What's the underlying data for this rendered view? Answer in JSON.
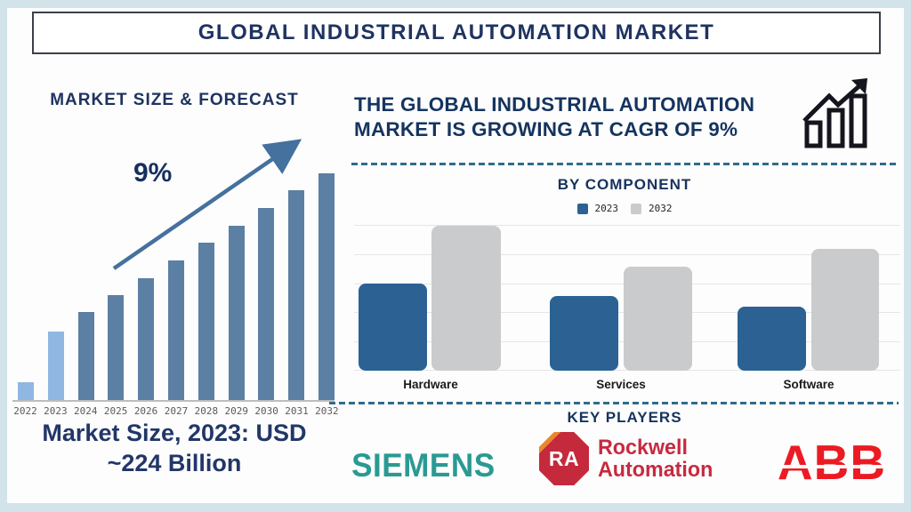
{
  "title": "GLOBAL INDUSTRIAL AUTOMATION MARKET",
  "left": {
    "heading": "MARKET SIZE & FORECAST",
    "growth_label": "9%",
    "caption_line1": "Market Size, 2023: USD",
    "caption_line2": "~224 Billion"
  },
  "right": {
    "headline_line1": "THE GLOBAL INDUSTRIAL AUTOMATION",
    "headline_line2": "MARKET IS GROWING AT CAGR OF 9%",
    "key_players_heading": "KEY PLAYERS"
  },
  "logos": {
    "siemens": "SIEMENS",
    "rockwell_badge": "RA",
    "rockwell_line1": "Rockwell",
    "rockwell_line2": "Automation",
    "abb": "ABB"
  },
  "chart_data": [
    {
      "id": "market-size-forecast",
      "type": "bar",
      "title": "MARKET SIZE & FORECAST",
      "categories": [
        "2022",
        "2023",
        "2024",
        "2025",
        "2026",
        "2027",
        "2028",
        "2029",
        "2030",
        "2031",
        "2032"
      ],
      "values": [
        20,
        77,
        99,
        118,
        137,
        157,
        177,
        196,
        216,
        236,
        255
      ],
      "value_scale": "relative bar heights in px; no y-axis labels shown in figure",
      "highlight": "2022 and 2023 bars are light blue, 2024-2032 forecast bars are dark slate blue",
      "annotation": "9% CAGR trend arrow rising left to right",
      "caption": "Market Size, 2023: USD ~224 Billion",
      "grid": false,
      "legend": "none"
    },
    {
      "id": "by-component",
      "type": "grouped-bar",
      "title": "BY COMPONENT",
      "categories": [
        "Hardware",
        "Services",
        "Software"
      ],
      "series": [
        {
          "name": "2023",
          "color": "#2b6293",
          "values": [
            98,
            84,
            72
          ]
        },
        {
          "name": "2032",
          "color": "#c9cbcd",
          "values": [
            163,
            117,
            137
          ]
        }
      ],
      "value_scale": "relative bar heights in px; no y-axis labels shown in figure",
      "grid": true,
      "legend_position": "top-center"
    }
  ],
  "colors": {
    "background_frame": "#d3e3ea",
    "panel": "#fdfdfd",
    "navy_text": "#1e3360",
    "bar_dark": "#5c7fa4",
    "bar_light": "#8fb7e2",
    "trend_arrow": "#44719e",
    "component_2023": "#2b6293",
    "component_2032": "#c9cbcd",
    "dashed_divider": "#2f6b8c",
    "siemens_teal": "#2a9a93",
    "rockwell_crimson": "#c8293f",
    "rockwell_orange": "#e8872e",
    "abb_red": "#ec1b23"
  }
}
